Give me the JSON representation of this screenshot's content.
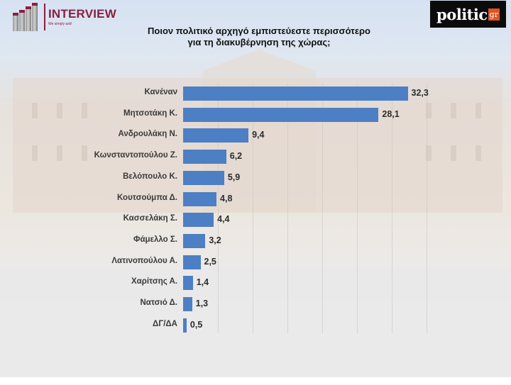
{
  "header": {
    "left_logo": {
      "name": "INTERVIEW",
      "tagline": "We simply ask!"
    },
    "right_logo": {
      "word": "politic",
      "suffix": "gr"
    },
    "title_line1": "Ποιον πολιτικό αρχηγό εμπιστεύεστε περισσότερο",
    "title_line2": "για τη διακυβέρνηση της χώρας;"
  },
  "colors": {
    "bar": "#4d7fc4",
    "brand_interview": "#8b1f3e",
    "brand_politic_bg": "#0b0b0b",
    "brand_politic_accent": "#e0531f"
  },
  "chart_data": {
    "type": "bar",
    "orientation": "horizontal",
    "title": "Ποιον πολιτικό αρχηγό εμπιστεύεστε περισσότερο για τη διακυβέρνηση της χώρας;",
    "xlabel": "",
    "ylabel": "",
    "xlim": [
      0,
      40
    ],
    "grid": true,
    "legend": "none",
    "categories": [
      "Κανέναν",
      "Μητσοτάκη Κ.",
      "Ανδρουλάκη Ν.",
      "Κωνσταντοπούλου Ζ.",
      "Βελόπουλο Κ.",
      "Κουτσούμπα Δ.",
      "Κασσελάκη Σ.",
      "Φάμελλο Σ.",
      "Λατινοπούλου Α.",
      "Χαρίτσης Α.",
      "Νατσιό Δ.",
      "ΔΓ/ΔΑ"
    ],
    "values": [
      32.3,
      28.1,
      9.4,
      6.2,
      5.9,
      4.8,
      4.4,
      3.2,
      2.5,
      1.4,
      1.3,
      0.5
    ],
    "value_labels": [
      "32,3",
      "28,1",
      "9,4",
      "6,2",
      "5,9",
      "4,8",
      "4,4",
      "3,2",
      "2,5",
      "1,4",
      "1,3",
      "0,5"
    ]
  }
}
